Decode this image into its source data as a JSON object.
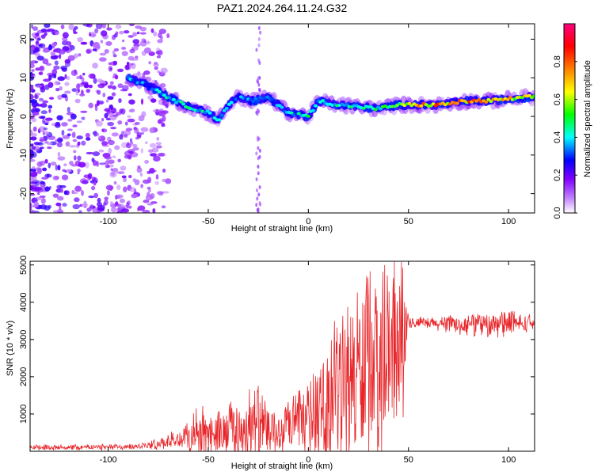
{
  "chart_data": [
    {
      "type": "heatmap",
      "title": "PAZ1.2024.264.11.24.G32",
      "xlabel": "Height of straight line (km)",
      "ylabel": "Frequency (Hz)",
      "xlim": [
        -139,
        113
      ],
      "ylim": [
        -25,
        24
      ],
      "xticks": [
        -100,
        -50,
        0,
        50,
        100
      ],
      "yticks": [
        -20,
        -10,
        0,
        10,
        20
      ],
      "colorbar": {
        "label": "Normalized spectral amplitude",
        "range": [
          0,
          1
        ],
        "ticks": [
          0.0,
          0.2,
          0.4,
          0.6,
          0.8
        ],
        "tick_labels": [
          "0.0",
          "0.2",
          "0.4",
          "0.6",
          "0.8"
        ],
        "colors": [
          "#ffffff",
          "#8000ff",
          "#0000ff",
          "#00ffff",
          "#00ff00",
          "#ffff00",
          "#ff8000",
          "#ff0000",
          "#ff0080"
        ]
      },
      "ridge": [
        {
          "x": -90,
          "y": 10,
          "amp": 0.35
        },
        {
          "x": -80,
          "y": 8,
          "amp": 0.3
        },
        {
          "x": -70,
          "y": 5,
          "amp": 0.4
        },
        {
          "x": -60,
          "y": 2.5,
          "amp": 0.45
        },
        {
          "x": -50,
          "y": 1,
          "amp": 0.4
        },
        {
          "x": -45,
          "y": -1,
          "amp": 0.35
        },
        {
          "x": -40,
          "y": 3,
          "amp": 0.35
        },
        {
          "x": -35,
          "y": 5,
          "amp": 0.3
        },
        {
          "x": -28,
          "y": 4,
          "amp": 0.35
        },
        {
          "x": -20,
          "y": 5,
          "amp": 0.3
        },
        {
          "x": -15,
          "y": 3,
          "amp": 0.35
        },
        {
          "x": -10,
          "y": 1,
          "amp": 0.35
        },
        {
          "x": -5,
          "y": 0.5,
          "amp": 0.4
        },
        {
          "x": 0,
          "y": 0,
          "amp": 0.45
        },
        {
          "x": 5,
          "y": 4,
          "amp": 0.4
        },
        {
          "x": 15,
          "y": 3,
          "amp": 0.45
        },
        {
          "x": 25,
          "y": 2.5,
          "amp": 0.4
        },
        {
          "x": 35,
          "y": 2,
          "amp": 0.45
        },
        {
          "x": 45,
          "y": 3,
          "amp": 0.5
        },
        {
          "x": 55,
          "y": 3,
          "amp": 0.7
        },
        {
          "x": 65,
          "y": 3,
          "amp": 0.75
        },
        {
          "x": 80,
          "y": 4,
          "amp": 0.8
        },
        {
          "x": 90,
          "y": 4,
          "amp": 0.75
        },
        {
          "x": 100,
          "y": 4.5,
          "amp": 0.7
        },
        {
          "x": 110,
          "y": 5,
          "amp": 0.6
        }
      ],
      "noise_region": {
        "x": [
          -139,
          -80
        ],
        "y": [
          -25,
          24
        ]
      }
    },
    {
      "type": "line",
      "xlabel": "Height of straight line (km)",
      "ylabel": "SNR (10 * v/v)",
      "xlim": [
        -139,
        113
      ],
      "ylim": [
        0,
        5100
      ],
      "xticks": [
        -100,
        -50,
        0,
        50,
        100
      ],
      "yticks": [
        1000,
        2000,
        3000,
        4000,
        5000
      ],
      "color": "#e8262a",
      "envelope": [
        {
          "x": -139,
          "base": 100,
          "amp": 80
        },
        {
          "x": -90,
          "base": 110,
          "amp": 90
        },
        {
          "x": -80,
          "base": 150,
          "amp": 100
        },
        {
          "x": -70,
          "base": 250,
          "amp": 250
        },
        {
          "x": -60,
          "base": 350,
          "amp": 450
        },
        {
          "x": -55,
          "base": 500,
          "amp": 900
        },
        {
          "x": -50,
          "base": 400,
          "amp": 600
        },
        {
          "x": -40,
          "base": 500,
          "amp": 800
        },
        {
          "x": -25,
          "base": 600,
          "amp": 1500
        },
        {
          "x": -20,
          "base": 500,
          "amp": 700
        },
        {
          "x": -15,
          "base": 400,
          "amp": 600
        },
        {
          "x": -8,
          "base": 700,
          "amp": 900
        },
        {
          "x": 5,
          "base": 900,
          "amp": 1300
        },
        {
          "x": 12,
          "base": 1400,
          "amp": 2100
        },
        {
          "x": 20,
          "base": 1900,
          "amp": 2700
        },
        {
          "x": 30,
          "base": 2200,
          "amp": 2800
        },
        {
          "x": 40,
          "base": 2400,
          "amp": 2800
        },
        {
          "x": 47,
          "base": 2600,
          "amp": 2500
        },
        {
          "x": 50,
          "base": 3450,
          "amp": 150
        },
        {
          "x": 70,
          "base": 3400,
          "amp": 250
        },
        {
          "x": 85,
          "base": 3350,
          "amp": 350
        },
        {
          "x": 100,
          "base": 3400,
          "amp": 400
        },
        {
          "x": 113,
          "base": 3450,
          "amp": 200
        }
      ]
    }
  ]
}
